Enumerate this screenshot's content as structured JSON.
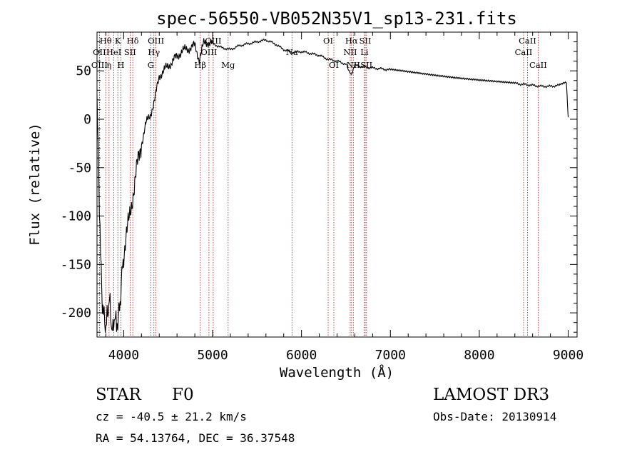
{
  "chart_data": {
    "type": "line",
    "title": "spec-56550-VB052N35V1_sp13-231.fits",
    "xlabel": "Wavelength (Å)",
    "ylabel": "Flux (relative)",
    "xlim": [
      3700,
      9100
    ],
    "ylim": [
      -225,
      90
    ],
    "x_ticks": [
      4000,
      5000,
      6000,
      7000,
      8000,
      9000
    ],
    "y_ticks": [
      -200,
      -150,
      -100,
      -50,
      0,
      50
    ],
    "grid": false,
    "series": [
      {
        "name": "flux",
        "x": [
          3700,
          3720,
          3740,
          3760,
          3780,
          3800,
          3820,
          3840,
          3860,
          3880,
          3900,
          3920,
          3940,
          3960,
          3980,
          4000,
          4050,
          4100,
          4150,
          4200,
          4250,
          4300,
          4350,
          4400,
          4450,
          4500,
          4550,
          4600,
          4650,
          4700,
          4750,
          4800,
          4850,
          4900,
          4950,
          5000,
          5100,
          5200,
          5300,
          5400,
          5500,
          5600,
          5700,
          5800,
          5900,
          6000,
          6100,
          6200,
          6300,
          6400,
          6500,
          6563,
          6600,
          6700,
          6800,
          6900,
          7000,
          7200,
          7400,
          7600,
          7800,
          8000,
          8200,
          8400,
          8500,
          8600,
          8700,
          8800,
          8900,
          8980,
          9000
        ],
        "values": [
          20,
          -60,
          -140,
          -190,
          -205,
          -215,
          -200,
          -185,
          -210,
          -220,
          -200,
          -215,
          -205,
          -190,
          -160,
          -140,
          -110,
          -80,
          -50,
          -25,
          -5,
          5,
          20,
          45,
          50,
          55,
          60,
          65,
          70,
          72,
          74,
          76,
          62,
          78,
          80,
          78,
          74,
          72,
          76,
          78,
          80,
          82,
          78,
          72,
          69,
          70,
          68,
          66,
          62,
          60,
          57,
          45,
          56,
          54,
          53,
          52,
          51,
          49,
          47,
          45,
          43,
          41,
          39,
          37,
          36,
          35,
          34,
          34,
          35,
          38,
          2
        ]
      }
    ],
    "emission_lines": [
      {
        "label": "Hθ",
        "wavelength": 3798,
        "row": 1
      },
      {
        "label": "OII",
        "wavelength": 3727,
        "row": 2
      },
      {
        "label": "OIII",
        "wavelength": 3727,
        "row": 3
      },
      {
        "label": "η",
        "wavelength": 3835,
        "row": 3
      },
      {
        "label": "HeI",
        "wavelength": 3889,
        "row": 2
      },
      {
        "label": "K",
        "wavelength": 3934,
        "row": 1
      },
      {
        "label": "H",
        "wavelength": 3968,
        "row": 3
      },
      {
        "label": "SII",
        "wavelength": 4072,
        "row": 2
      },
      {
        "label": "Hδ",
        "wavelength": 4102,
        "row": 1
      },
      {
        "label": "OIII",
        "wavelength": 4363,
        "row": 1
      },
      {
        "label": "Hγ",
        "wavelength": 4340,
        "row": 2
      },
      {
        "label": "G",
        "wavelength": 4305,
        "row": 3
      },
      {
        "label": "Hβ",
        "wavelength": 4861,
        "row": 3
      },
      {
        "label": "OIII",
        "wavelength": 4959,
        "row": 2
      },
      {
        "label": "OIII",
        "wavelength": 5007,
        "row": 1
      },
      {
        "label": "Mg",
        "wavelength": 5175,
        "row": 3
      },
      {
        "label": "Na",
        "wavelength": 5893,
        "row": 2
      },
      {
        "label": "OI",
        "wavelength": 6300,
        "row": 1
      },
      {
        "label": "OI",
        "wavelength": 6364,
        "row": 3
      },
      {
        "label": "Hα",
        "wavelength": 6563,
        "row": 1
      },
      {
        "label": "NII",
        "wavelength": 6548,
        "row": 2
      },
      {
        "label": "NII",
        "wavelength": 6583,
        "row": 3
      },
      {
        "label": "SII",
        "wavelength": 6717,
        "row": 1
      },
      {
        "label": "Li",
        "wavelength": 6708,
        "row": 2
      },
      {
        "label": "SII",
        "wavelength": 6731,
        "row": 3
      },
      {
        "label": "CaII",
        "wavelength": 8542,
        "row": 1
      },
      {
        "label": "CaII",
        "wavelength": 8498,
        "row": 2
      },
      {
        "label": "CaII",
        "wavelength": 8662,
        "row": 3
      }
    ]
  },
  "info": {
    "object_class": "STAR",
    "subclass": "F0",
    "survey": "LAMOST DR3",
    "redshift": "cz = -40.5 ± 21.2 km/s",
    "obs_date": "Obs-Date: 20130914",
    "coords": "RA =  54.13764, DEC =  36.37548"
  },
  "colors": {
    "line": "#000000",
    "marker_lines": "#b22222"
  }
}
